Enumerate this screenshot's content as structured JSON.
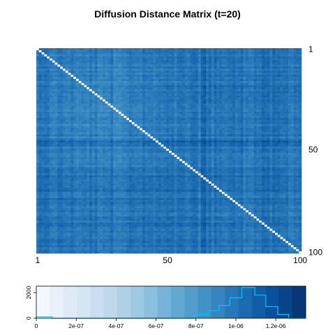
{
  "chart_data": [
    {
      "type": "heatmap",
      "title": "Diffusion Distance Matrix (t=20)",
      "n": 100,
      "diagonal_value": 0,
      "color_scale": [
        "#f7fbff",
        "#deebf7",
        "#c6dbef",
        "#9ecae1",
        "#6baed6",
        "#4292c6",
        "#2171b5",
        "#08519c",
        "#08306b"
      ],
      "diagonal_color": "#ffffff",
      "row_tick_labels": [
        "1",
        "50",
        "100"
      ],
      "col_tick_labels": [
        "1",
        "50",
        "100"
      ],
      "value_range": [
        0,
        1.35e-06
      ]
    },
    {
      "type": "histogram",
      "role": "color key",
      "x_tick_labels": [
        "0",
        "2e-07",
        "4e-07",
        "6e-07",
        "8e-07",
        "1e-06",
        "1.2e-06"
      ],
      "x_ticks": [
        0,
        2e-07,
        4e-07,
        6e-07,
        8e-07,
        1e-06,
        1.2e-06
      ],
      "y_tick_labels": [
        "0",
        "2000"
      ],
      "y_ticks": [
        0,
        2000
      ],
      "xlim": [
        0,
        1.35e-06
      ],
      "ylim": [
        0,
        2500
      ],
      "color_bins": 20,
      "line_color": "#00bfff",
      "bins": [
        {
          "x": 0,
          "count": 100
        },
        {
          "x": 8e-08,
          "count": 0
        },
        {
          "x": 7.7e-07,
          "count": 0
        },
        {
          "x": 7.95e-07,
          "count": 300
        },
        {
          "x": 8.6e-07,
          "count": 600
        },
        {
          "x": 9.15e-07,
          "count": 1000
        },
        {
          "x": 9.7e-07,
          "count": 1600
        },
        {
          "x": 1.03e-06,
          "count": 2400
        },
        {
          "x": 1.095e-06,
          "count": 1800
        },
        {
          "x": 1.15e-06,
          "count": 900
        },
        {
          "x": 1.21e-06,
          "count": 300
        },
        {
          "x": 1.265e-06,
          "count": 0
        }
      ]
    }
  ]
}
